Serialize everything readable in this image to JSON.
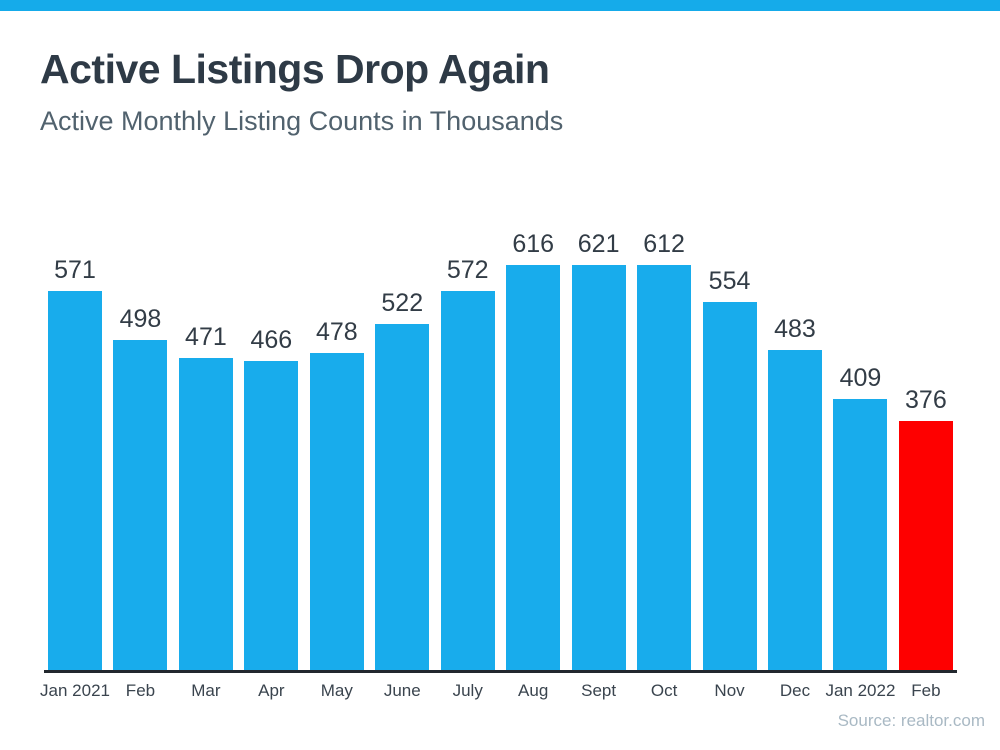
{
  "page": {
    "accent_color": "#15ABEA"
  },
  "header": {
    "title": "Active Listings Drop Again",
    "subtitle": "Active Monthly Listing Counts in Thousands"
  },
  "chart_data": {
    "type": "bar",
    "title": "Active Listings Drop Again",
    "subtitle": "Active Monthly Listing Counts in Thousands",
    "categories": [
      "Jan 2021",
      "Feb",
      "Mar",
      "Apr",
      "May",
      "June",
      "July",
      "Aug",
      "Sept",
      "Oct",
      "Nov",
      "Dec",
      "Jan 2022",
      "Feb"
    ],
    "values": [
      571,
      498,
      471,
      466,
      478,
      522,
      572,
      616,
      621,
      612,
      554,
      483,
      409,
      376
    ],
    "bar_color": "#18ACEC",
    "highlight_index": 13,
    "highlight_color": "#FE0000",
    "value_labels_shown": true,
    "xlabel": "",
    "ylabel": "",
    "ylim": [
      0,
      650
    ],
    "grid": false,
    "legend": false,
    "axis_line_color": "#22282E"
  },
  "footer": {
    "source": "Source: realtor.com"
  }
}
